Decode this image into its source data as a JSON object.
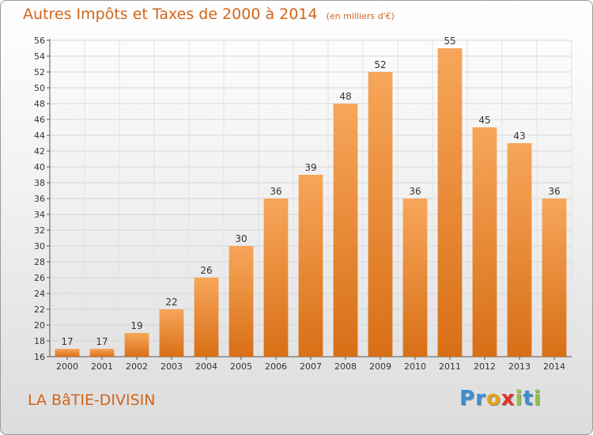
{
  "title": "Autres Impôts et Taxes de 2000 à 2014",
  "unit_note": "(en milliers d'€)",
  "commune": "LA BâTIE-DIVISIN",
  "logo": {
    "letters": [
      "P",
      "r",
      "o",
      "x",
      "i",
      "t",
      "i"
    ],
    "colors": [
      "#3a8fd0",
      "#3a8fd0",
      "#e8a21a",
      "#e0342a",
      "#8cc63e",
      "#3a8fd0",
      "#8cc63e"
    ]
  },
  "chart_data": {
    "type": "bar",
    "title": "Autres Impôts et Taxes de 2000 à 2014",
    "categories": [
      "2000",
      "2001",
      "2002",
      "2003",
      "2004",
      "2005",
      "2006",
      "2007",
      "2008",
      "2009",
      "2010",
      "2011",
      "2012",
      "2013",
      "2014"
    ],
    "values": [
      17,
      17,
      19,
      22,
      26,
      30,
      36,
      39,
      48,
      52,
      36,
      55,
      45,
      43,
      36
    ],
    "ylim": [
      16,
      56
    ],
    "yticks": [
      16,
      18,
      20,
      22,
      24,
      26,
      28,
      30,
      32,
      34,
      36,
      38,
      40,
      42,
      44,
      46,
      48,
      50,
      52,
      54,
      56
    ],
    "grid": true,
    "bar_color_top": "#f7a65a",
    "bar_color_bottom": "#d86f16"
  }
}
